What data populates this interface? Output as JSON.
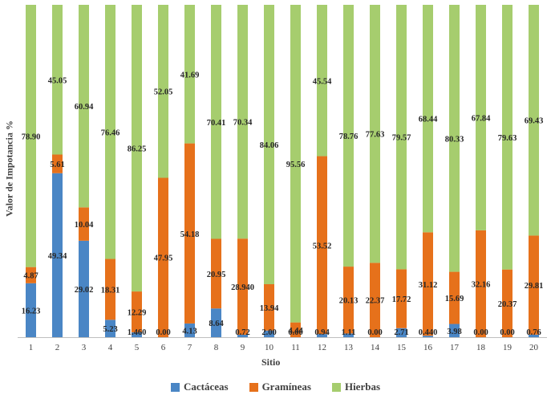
{
  "chart_data": {
    "type": "bar",
    "stacked": true,
    "title": "",
    "xlabel": "Sitio",
    "ylabel": "Valor de Impotancia %",
    "ylim": [
      0,
      100
    ],
    "grid": false,
    "legend_position": "bottom",
    "categories": [
      "1",
      "2",
      "3",
      "4",
      "5",
      "6",
      "7",
      "8",
      "9",
      "10",
      "11",
      "12",
      "13",
      "14",
      "15",
      "16",
      "17",
      "18",
      "19",
      "20"
    ],
    "series": [
      {
        "name": "Cactáceas",
        "color": "#4a86c5",
        "values": [
          16.23,
          49.34,
          29.02,
          5.23,
          1.46,
          0.0,
          4.13,
          8.64,
          0.72,
          2.0,
          0.0,
          0.94,
          1.11,
          0.0,
          2.71,
          0.44,
          3.98,
          0.0,
          0.0,
          0.76
        ],
        "labels": [
          "16.23",
          "49.34",
          "29.02",
          "5.23",
          "1.460",
          "0.00",
          "4.13",
          "8.64",
          "0.72",
          "2.00",
          "0.00",
          "0.94",
          "1.11",
          "0.00",
          "2.71",
          "0.440",
          "3.98",
          "0.00",
          "0.00",
          "0.76"
        ]
      },
      {
        "name": "Gramíneas",
        "color": "#e6711b",
        "values": [
          4.87,
          5.61,
          10.04,
          18.31,
          12.29,
          47.95,
          54.18,
          20.95,
          28.94,
          13.94,
          4.44,
          53.52,
          20.13,
          22.37,
          17.72,
          31.12,
          15.69,
          32.16,
          20.37,
          29.81
        ],
        "labels": [
          "4.87",
          "5.61",
          "10.04",
          "18.31",
          "12.29",
          "47.95",
          "54.18",
          "20.95",
          "28.940",
          "13.94",
          "4.44",
          "53.52",
          "20.13",
          "22.37",
          "17.72",
          "31.12",
          "15.69",
          "32.16",
          "20.37",
          "29.81"
        ]
      },
      {
        "name": "Hierbas",
        "color": "#a6cd6e",
        "values": [
          78.9,
          45.05,
          60.94,
          76.46,
          86.25,
          52.05,
          41.69,
          70.41,
          70.34,
          84.06,
          95.56,
          45.54,
          78.76,
          77.63,
          79.57,
          68.44,
          80.33,
          67.84,
          79.63,
          69.43
        ],
        "labels": [
          "78.90",
          "45.05",
          "60.94",
          "76.46",
          "86.25",
          "52.05",
          "41.69",
          "70.41",
          "70.34",
          "84.06",
          "95.56",
          "45.54",
          "78.76",
          "77.63",
          "79.57",
          "68.44",
          "80.33",
          "67.84",
          "79.63",
          "69.43"
        ]
      }
    ]
  }
}
